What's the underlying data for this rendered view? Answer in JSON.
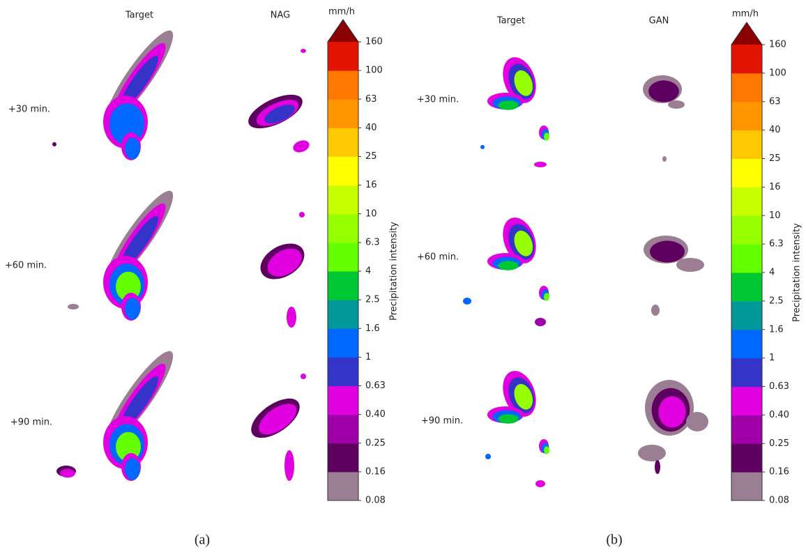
{
  "panels": [
    {
      "caption": "(a)",
      "columns": [
        "Target",
        "NAG"
      ],
      "rows": [
        "+30 min.",
        "+60 min.",
        "+90 min."
      ]
    },
    {
      "caption": "(b)",
      "columns": [
        "Target",
        "GAN"
      ],
      "rows": [
        "+30 min.",
        "+60 min.",
        "+90 min."
      ]
    }
  ],
  "colorbar": {
    "unit": "mm/h",
    "label": "Precipitation intensity",
    "ticks": [
      "0.08",
      "0.16",
      "0.25",
      "0.40",
      "0.63",
      "1",
      "1.6",
      "2.5",
      "4",
      "6.3",
      "10",
      "16",
      "25",
      "40",
      "63",
      "100",
      "160"
    ],
    "colors": [
      "#9c7e94",
      "#5e0060",
      "#a000a8",
      "#e000e0",
      "#3434c8",
      "#0068ff",
      "#009898",
      "#00c832",
      "#64ff00",
      "#96ff00",
      "#c8ff00",
      "#ffff00",
      "#ffc800",
      "#ff9600",
      "#ff7800",
      "#e01400"
    ],
    "extend_color": "#8b0000"
  }
}
